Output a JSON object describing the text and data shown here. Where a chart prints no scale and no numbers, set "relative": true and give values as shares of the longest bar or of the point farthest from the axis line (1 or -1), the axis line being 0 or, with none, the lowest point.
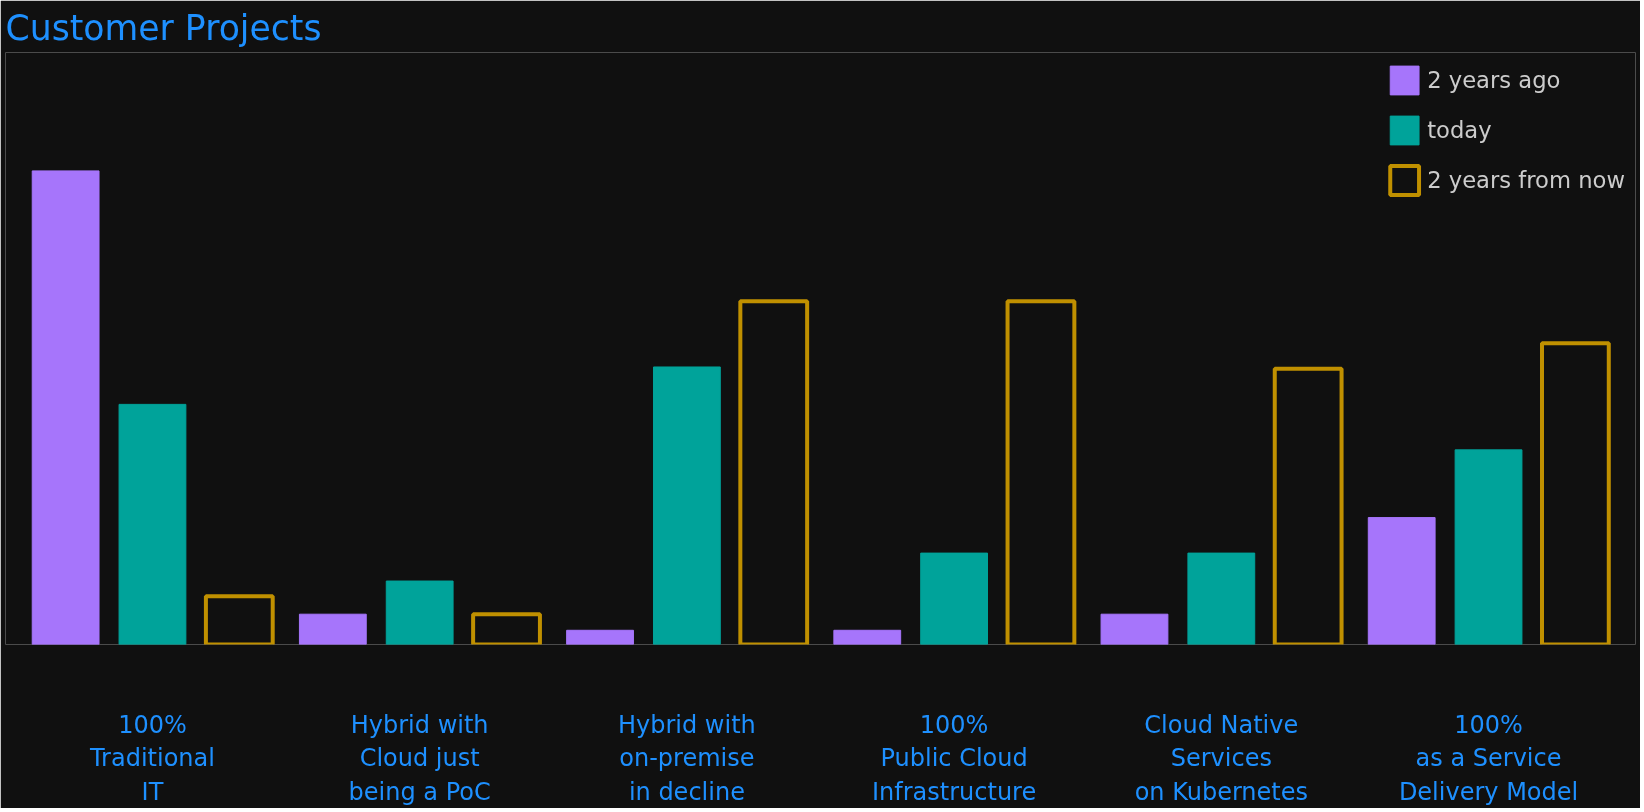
{
  "chart_data": {
    "type": "bar",
    "title": "Customer Projects",
    "relative": true,
    "legend": "top right",
    "grid": false,
    "categories": [
      "100%\nTraditional\nIT",
      "Hybrid with\nCloud just\nbeing a PoC",
      "Hybrid with\non-premise\nin decline",
      "100%\nPublic Cloud\nInfrastructure",
      "Cloud Native\nServices\non Kubernetes",
      "100%\nas a Service\nDelivery Model"
    ],
    "series": [
      {
        "name": "2 years ago",
        "color": "#a675fb",
        "values": [
          1,
          0.064,
          0.03,
          0.03,
          0.064,
          0.268
        ]
      },
      {
        "name": "today",
        "color": "#00a39a",
        "values": [
          0.507,
          0.134,
          0.586,
          0.193,
          0.193,
          0.411
        ]
      },
      {
        "name": "2 years from now",
        "color": "#c09000",
        "values": [
          0.102,
          0.064,
          0.725,
          0.725,
          0.582,
          0.636
        ]
      }
    ]
  }
}
